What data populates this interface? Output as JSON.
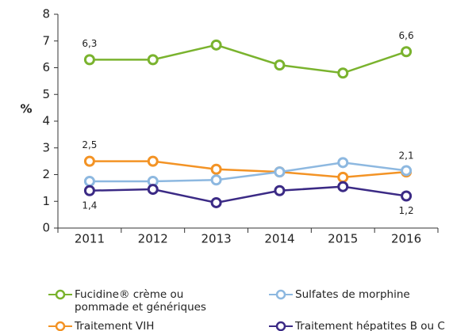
{
  "chart_data": {
    "type": "line",
    "categories": [
      "2011",
      "2012",
      "2013",
      "2014",
      "2015",
      "2016"
    ],
    "ylabel": "%",
    "ylim": [
      0,
      8
    ],
    "yticks": [
      0,
      1,
      2,
      3,
      4,
      5,
      6,
      7,
      8
    ],
    "series": [
      {
        "name": "Fucidine® crème ou pommade et génériques",
        "color": "#7ab32e",
        "values": [
          6.3,
          6.3,
          6.85,
          6.1,
          5.8,
          6.6
        ],
        "value_labels": [
          "6,3",
          null,
          null,
          null,
          null,
          "6,6"
        ]
      },
      {
        "name": "Traitement VIH",
        "color": "#f39325",
        "values": [
          2.5,
          2.5,
          2.2,
          2.1,
          1.9,
          2.1
        ],
        "value_labels": [
          "2,5",
          null,
          null,
          null,
          null,
          "2,1"
        ]
      },
      {
        "name": "Sulfates de morphine",
        "color": "#8db8e0",
        "values": [
          1.75,
          1.75,
          1.8,
          2.1,
          2.45,
          2.15
        ]
      },
      {
        "name": "Traitement hépatites B ou C",
        "color": "#3b2a85",
        "values": [
          1.4,
          1.45,
          0.95,
          1.4,
          1.55,
          1.2
        ],
        "value_labels": [
          "1,4",
          null,
          null,
          null,
          null,
          "1,2"
        ]
      }
    ],
    "legend": "bottom"
  }
}
